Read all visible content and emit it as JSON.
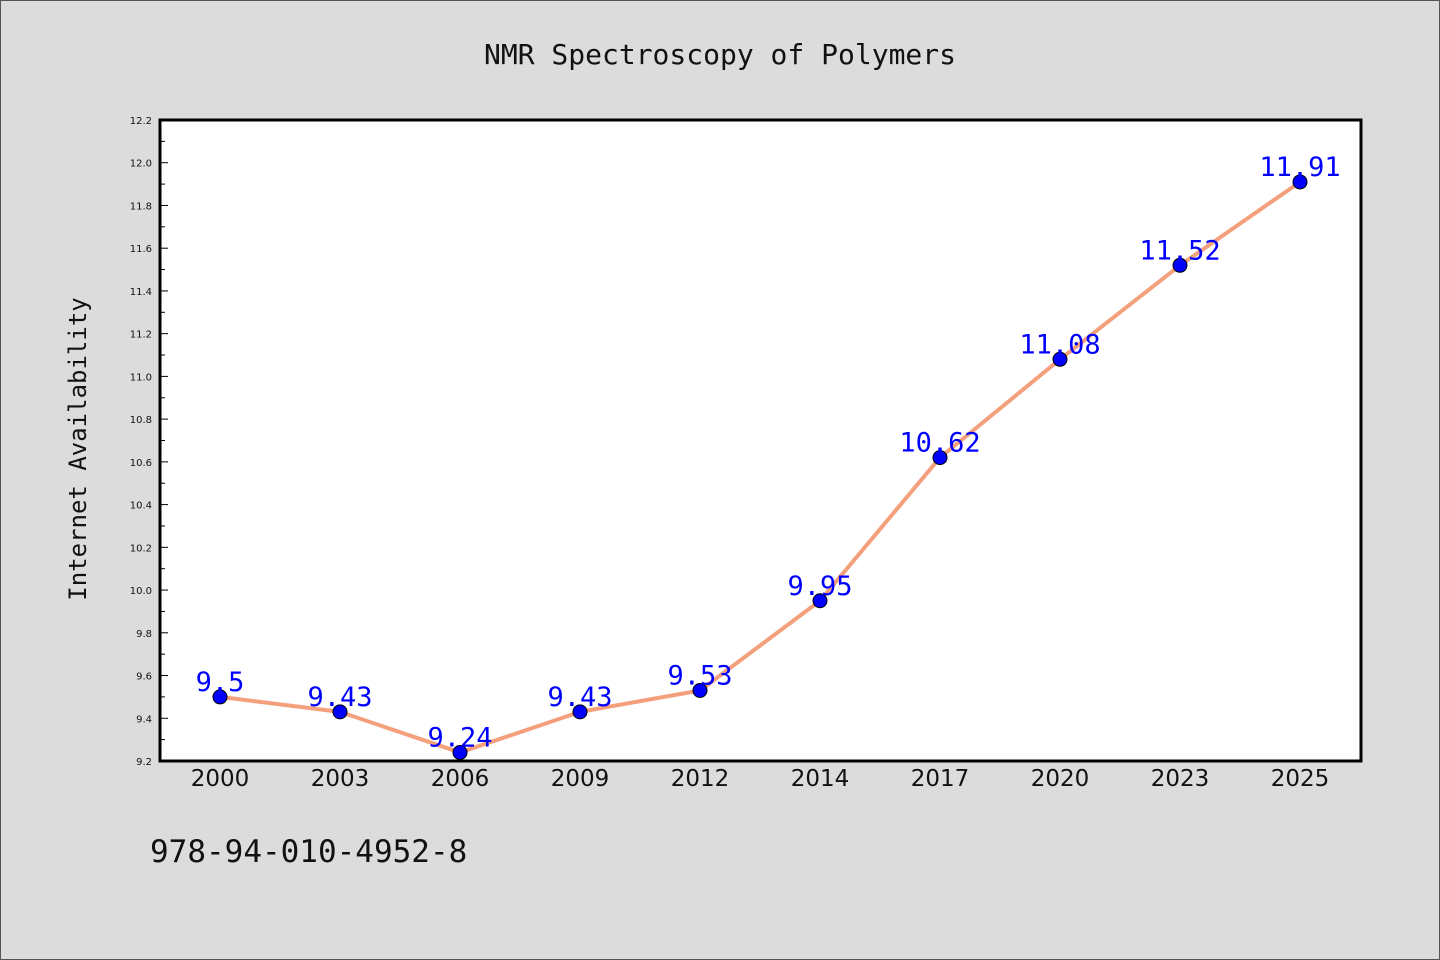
{
  "chart_data": {
    "type": "line",
    "title": "NMR Spectroscopy of Polymers",
    "xlabel": "",
    "ylabel": "Internet Availability",
    "categories": [
      "2000",
      "2003",
      "2006",
      "2009",
      "2012",
      "2014",
      "2017",
      "2020",
      "2023",
      "2025"
    ],
    "series": [
      {
        "values": [
          9.5,
          9.43,
          9.24,
          9.43,
          9.53,
          9.95,
          10.62,
          11.08,
          11.52,
          11.91
        ],
        "labels": [
          "9.5",
          "9.43",
          "9.24",
          "9.43",
          "9.53",
          "9.95",
          "10.62",
          "11.08",
          "11.52",
          "11.91"
        ],
        "line_color": "#f4a07c",
        "marker_color": "#0000ff"
      }
    ],
    "ylim": [
      9.2,
      12.2
    ],
    "yticks": [
      "9.2",
      "9.4",
      "9.6",
      "9.8",
      "10.0",
      "10.2",
      "10.4",
      "10.6",
      "10.8",
      "11.0",
      "11.2",
      "11.4",
      "11.6",
      "11.8",
      "12.0",
      "12.2"
    ],
    "grid": false,
    "label_color": "#0000ff"
  },
  "footer": {
    "isbn": "978-94-010-4952-8"
  }
}
